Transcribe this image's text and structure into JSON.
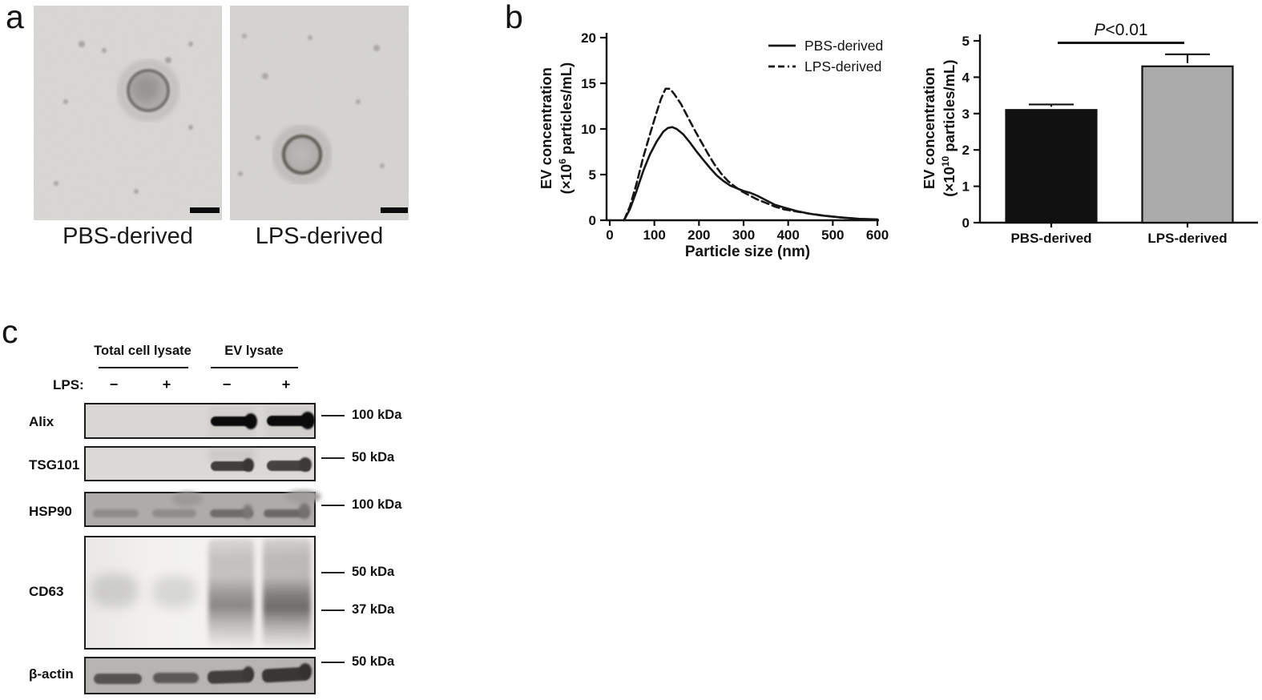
{
  "panels": {
    "a": {
      "label": "a",
      "captions": [
        "PBS-derived",
        "LPS-derived"
      ]
    },
    "b": {
      "label": "b"
    },
    "c": {
      "label": "c",
      "group_headers": [
        "Total cell lysate",
        "EV lysate"
      ],
      "lps_label": "LPS:",
      "lane_signs": [
        "−",
        "+",
        "−",
        "+"
      ],
      "blot_rows": [
        {
          "label": "Alix",
          "markers": [
            "100 kDa"
          ]
        },
        {
          "label": "TSG101",
          "markers": [
            "50 kDa"
          ]
        },
        {
          "label": "HSP90",
          "markers": [
            "100 kDa"
          ]
        },
        {
          "label": "CD63",
          "markers": [
            "50 kDa",
            "37 kDa"
          ]
        },
        {
          "label": "β-actin",
          "markers": [
            "50 kDa"
          ]
        }
      ]
    }
  },
  "chart_data": [
    {
      "type": "line",
      "title": "",
      "xlabel": "Particle size (nm)",
      "ylabel": "EV concentration (×10⁶ particles/mL)",
      "ylabel_lines": {
        "l1": "EV concentration",
        "pre": "(×10",
        "sup": "6",
        "post": " particles/mL)"
      },
      "xlim": [
        0,
        600
      ],
      "ylim": [
        0,
        20
      ],
      "xticks": [
        0,
        100,
        200,
        300,
        400,
        500,
        600
      ],
      "yticks": [
        0,
        5,
        10,
        15,
        20
      ],
      "grid": false,
      "legend_position": "top-right",
      "series": [
        {
          "name": "PBS-derived",
          "line_style": "solid",
          "x": [
            32,
            45,
            60,
            75,
            90,
            105,
            120,
            130,
            140,
            150,
            165,
            180,
            195,
            210,
            225,
            240,
            255,
            270,
            285,
            300,
            315,
            330,
            350,
            370,
            390,
            420,
            450,
            480,
            520,
            560,
            600
          ],
          "y": [
            0,
            1.2,
            3.2,
            5.4,
            7.2,
            8.6,
            9.7,
            10.1,
            10.2,
            10,
            9.4,
            8.5,
            7.5,
            6.6,
            5.7,
            4.9,
            4.3,
            3.8,
            3.5,
            3.2,
            3,
            2.7,
            2.2,
            1.7,
            1.4,
            1,
            0.7,
            0.5,
            0.3,
            0.15,
            0.1
          ]
        },
        {
          "name": "LPS-derived",
          "line_style": "dashed",
          "x": [
            32,
            45,
            60,
            75,
            90,
            105,
            115,
            125,
            135,
            145,
            160,
            175,
            190,
            205,
            220,
            235,
            250,
            265,
            280,
            295,
            310,
            330,
            350,
            370,
            390,
            420,
            450,
            480,
            520,
            560,
            600
          ],
          "y": [
            0,
            1.5,
            4,
            6.9,
            9.4,
            11.8,
            13.3,
            14.4,
            14.4,
            13.8,
            12.7,
            11.3,
            9.9,
            8.6,
            7.3,
            6.1,
            5.1,
            4.3,
            3.7,
            3.2,
            2.8,
            2.3,
            1.9,
            1.5,
            1.2,
            0.95,
            0.7,
            0.5,
            0.3,
            0.15,
            0.05
          ]
        }
      ]
    },
    {
      "type": "bar",
      "title": "",
      "categories": [
        "PBS-derived",
        "LPS-derived"
      ],
      "values": [
        3.1,
        4.3
      ],
      "errors": [
        0.15,
        0.33
      ],
      "bar_colors": [
        "#111111",
        "#ababab"
      ],
      "ylabel": "EV concentration (×10¹⁰ particles/mL)",
      "ylabel_lines": {
        "l1": "EV concentration",
        "pre": "(×10",
        "sup": "10",
        "post": " particles/mL)"
      },
      "ylim": [
        0,
        5
      ],
      "yticks": [
        0,
        1,
        2,
        3,
        4,
        5
      ],
      "significance": {
        "text": "P<0.01",
        "italic": "P",
        "rest": "<0.01"
      }
    }
  ]
}
